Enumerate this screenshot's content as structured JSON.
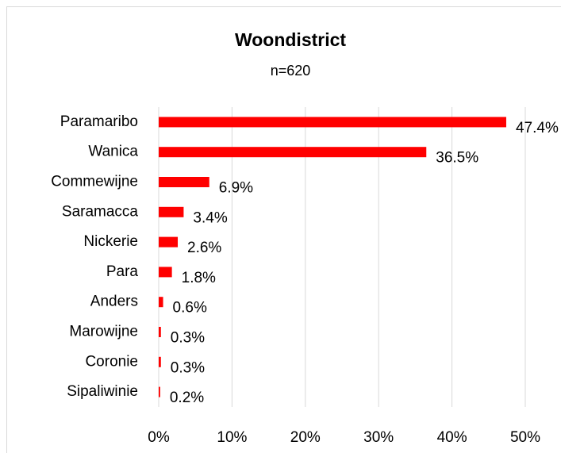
{
  "chart_data": {
    "type": "bar",
    "orientation": "horizontal",
    "title": "Woondistrict",
    "subtitle": "n=620",
    "categories": [
      "Paramaribo",
      "Wanica",
      "Commewijne",
      "Saramacca",
      "Nickerie",
      "Para",
      "Anders",
      "Marowijne",
      "Coronie",
      "Sipaliwinie"
    ],
    "values": [
      47.4,
      36.5,
      6.9,
      3.4,
      2.6,
      1.8,
      0.6,
      0.3,
      0.3,
      0.2
    ],
    "value_labels": [
      "47.4%",
      "36.5%",
      "6.9%",
      "3.4%",
      "2.6%",
      "1.8%",
      "0.6%",
      "0.3%",
      "0.3%",
      "0.2%"
    ],
    "color": "#ff0000",
    "xlim": [
      0,
      50
    ],
    "xticks": [
      {
        "value": 0,
        "label": "0%"
      },
      {
        "value": 10,
        "label": "10%"
      },
      {
        "value": 20,
        "label": "20%"
      },
      {
        "value": 30,
        "label": "30%"
      },
      {
        "value": 40,
        "label": "40%"
      },
      {
        "value": 50,
        "label": "50%"
      }
    ],
    "grid": true
  }
}
